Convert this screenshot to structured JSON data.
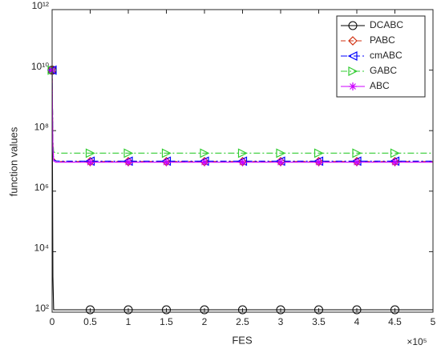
{
  "chart_data": {
    "type": "line",
    "xlabel": "FES",
    "ylabel": "function values",
    "x_multiplier": "×10⁵",
    "log_y": true,
    "x": [
      0,
      0.01,
      0.02,
      0.05,
      0.1,
      0.5,
      1,
      1.5,
      2,
      2.5,
      3,
      3.5,
      4,
      4.5,
      5
    ],
    "xlim": [
      0,
      5
    ],
    "xticks": [
      0,
      0.5,
      1,
      1.5,
      2,
      2.5,
      3,
      3.5,
      4,
      4.5,
      5
    ],
    "ylim": [
      100,
      1000000000000
    ],
    "yticks": [
      {
        "value": 100,
        "label": "10²"
      },
      {
        "value": 10000,
        "label": "10⁴"
      },
      {
        "value": 1000000,
        "label": "10⁶"
      },
      {
        "value": 100000000,
        "label": "10⁸"
      },
      {
        "value": 10000000000,
        "label": "10¹⁰"
      },
      {
        "value": 1000000000000,
        "label": "10¹²"
      }
    ],
    "legend": "upper right",
    "series": [
      {
        "name": "DCABC",
        "color": "#000000",
        "marker": "circle",
        "linestyle": "solid",
        "values": [
          10000000000,
          1500,
          120,
          120,
          120,
          120,
          120,
          120,
          120,
          120,
          120,
          120,
          120,
          120,
          120
        ]
      },
      {
        "name": "PABC",
        "color": "#d03010",
        "marker": "diamond",
        "linestyle": "dashed",
        "values": [
          10000000000,
          40000000,
          12000000,
          10000000,
          9500000,
          9500000,
          9500000,
          9500000,
          9500000,
          9500000,
          9500000,
          9500000,
          9500000,
          9500000,
          9500000
        ]
      },
      {
        "name": "cmABC",
        "color": "#0000ff",
        "marker": "triangle-left",
        "linestyle": "dashdot",
        "values": [
          10000000000,
          30000000,
          11000000,
          10000000,
          9800000,
          9800000,
          9800000,
          9800000,
          9800000,
          9800000,
          9800000,
          9800000,
          9800000,
          9800000,
          9800000
        ]
      },
      {
        "name": "GABC",
        "color": "#33cc33",
        "marker": "triangle-right",
        "linestyle": "dashdot",
        "values": [
          10000000000,
          50000000,
          20000000,
          18000000,
          18000000,
          18000000,
          18000000,
          18000000,
          18000000,
          18000000,
          18000000,
          18000000,
          18000000,
          18000000,
          18000000
        ]
      },
      {
        "name": "ABC",
        "color": "#cc00ff",
        "marker": "star",
        "linestyle": "solid",
        "values": [
          10000000000,
          30000000,
          10000000,
          9000000,
          9000000,
          9000000,
          9000000,
          9000000,
          9000000,
          9000000,
          9000000,
          9000000,
          9000000,
          9000000,
          9000000
        ]
      }
    ]
  }
}
